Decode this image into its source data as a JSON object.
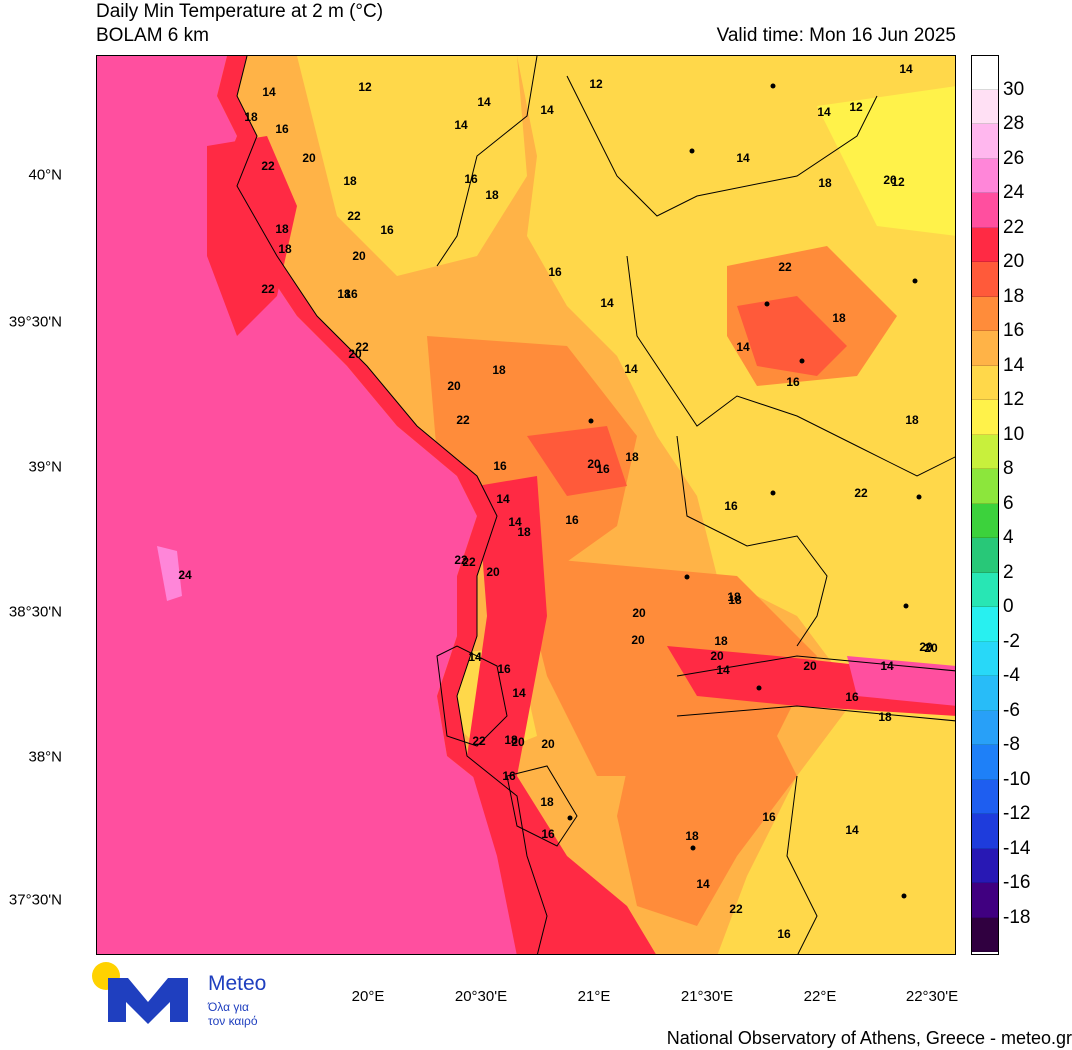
{
  "header": {
    "title_line1": "Daily Min Temperature at 2 m (°C)",
    "title_line2": "BOLAM 6 km",
    "valid_time": "Valid time: Mon 16 Jun 2025"
  },
  "map": {
    "lat_labels": [
      "40°N",
      "39°30'N",
      "39°N",
      "38°30'N",
      "38°N",
      "37°30'N"
    ],
    "lon_labels": [
      "20°E",
      "20°30'E",
      "21°E",
      "21°30'E",
      "22°E",
      "22°30'E"
    ],
    "contour_labels": [
      "14",
      "12",
      "14",
      "12",
      "14",
      "14",
      "12",
      "18",
      "16",
      "14",
      "22",
      "20",
      "18",
      "14",
      "12",
      "22",
      "16",
      "18",
      "18",
      "20",
      "22",
      "16",
      "14",
      "20",
      "18",
      "22",
      "18",
      "14",
      "16",
      "14",
      "20",
      "18",
      "16",
      "22",
      "18",
      "16",
      "20",
      "20",
      "18",
      "18",
      "16",
      "16",
      "14",
      "14",
      "22",
      "14",
      "16",
      "20",
      "18",
      "16",
      "14",
      "22",
      "18",
      "18",
      "20",
      "14",
      "14",
      "18",
      "20",
      "16",
      "18",
      "16",
      "20",
      "16",
      "14",
      "22",
      "22",
      "18",
      "20",
      "20",
      "18",
      "20",
      "16",
      "14",
      "18",
      "14",
      "20",
      "22",
      "24",
      "22",
      "16",
      "18",
      "16",
      "20"
    ],
    "colors": {
      "sea": "#ff4f9f",
      "coast_red": "#ff2a44",
      "orange_red": "#ff5a3a",
      "orange": "#ff8c3a",
      "light_orange": "#ffb347",
      "yellow": "#ffd84a",
      "pale_yellow": "#fff24a"
    }
  },
  "colorbar": {
    "labels": [
      "30",
      "28",
      "26",
      "24",
      "22",
      "20",
      "18",
      "16",
      "14",
      "12",
      "10",
      "8",
      "6",
      "4",
      "2",
      "0",
      "-2",
      "-4",
      "-6",
      "-8",
      "-10",
      "-12",
      "-14",
      "-16",
      "-18"
    ],
    "colors": [
      "#ffffff",
      "#ffe0f4",
      "#ffb7ee",
      "#ff86d9",
      "#ff4f9f",
      "#ff2a44",
      "#ff5a3a",
      "#ff8c3a",
      "#ffb347",
      "#ffd84a",
      "#fff24a",
      "#c8f03c",
      "#8ce63c",
      "#3cd23c",
      "#28c878",
      "#28e6b4",
      "#28f0f0",
      "#28d8f8",
      "#28bcf8",
      "#28a0f8",
      "#1e80f8",
      "#1e5ef0",
      "#1e3cdc",
      "#2818b4",
      "#400080",
      "#300040"
    ]
  },
  "branding": {
    "logo_word": "Meteo",
    "logo_tagline_1": "Όλα για",
    "logo_tagline_2": "τον καιρό",
    "footer": "National Observatory of Athens, Greece - meteo.gr"
  }
}
